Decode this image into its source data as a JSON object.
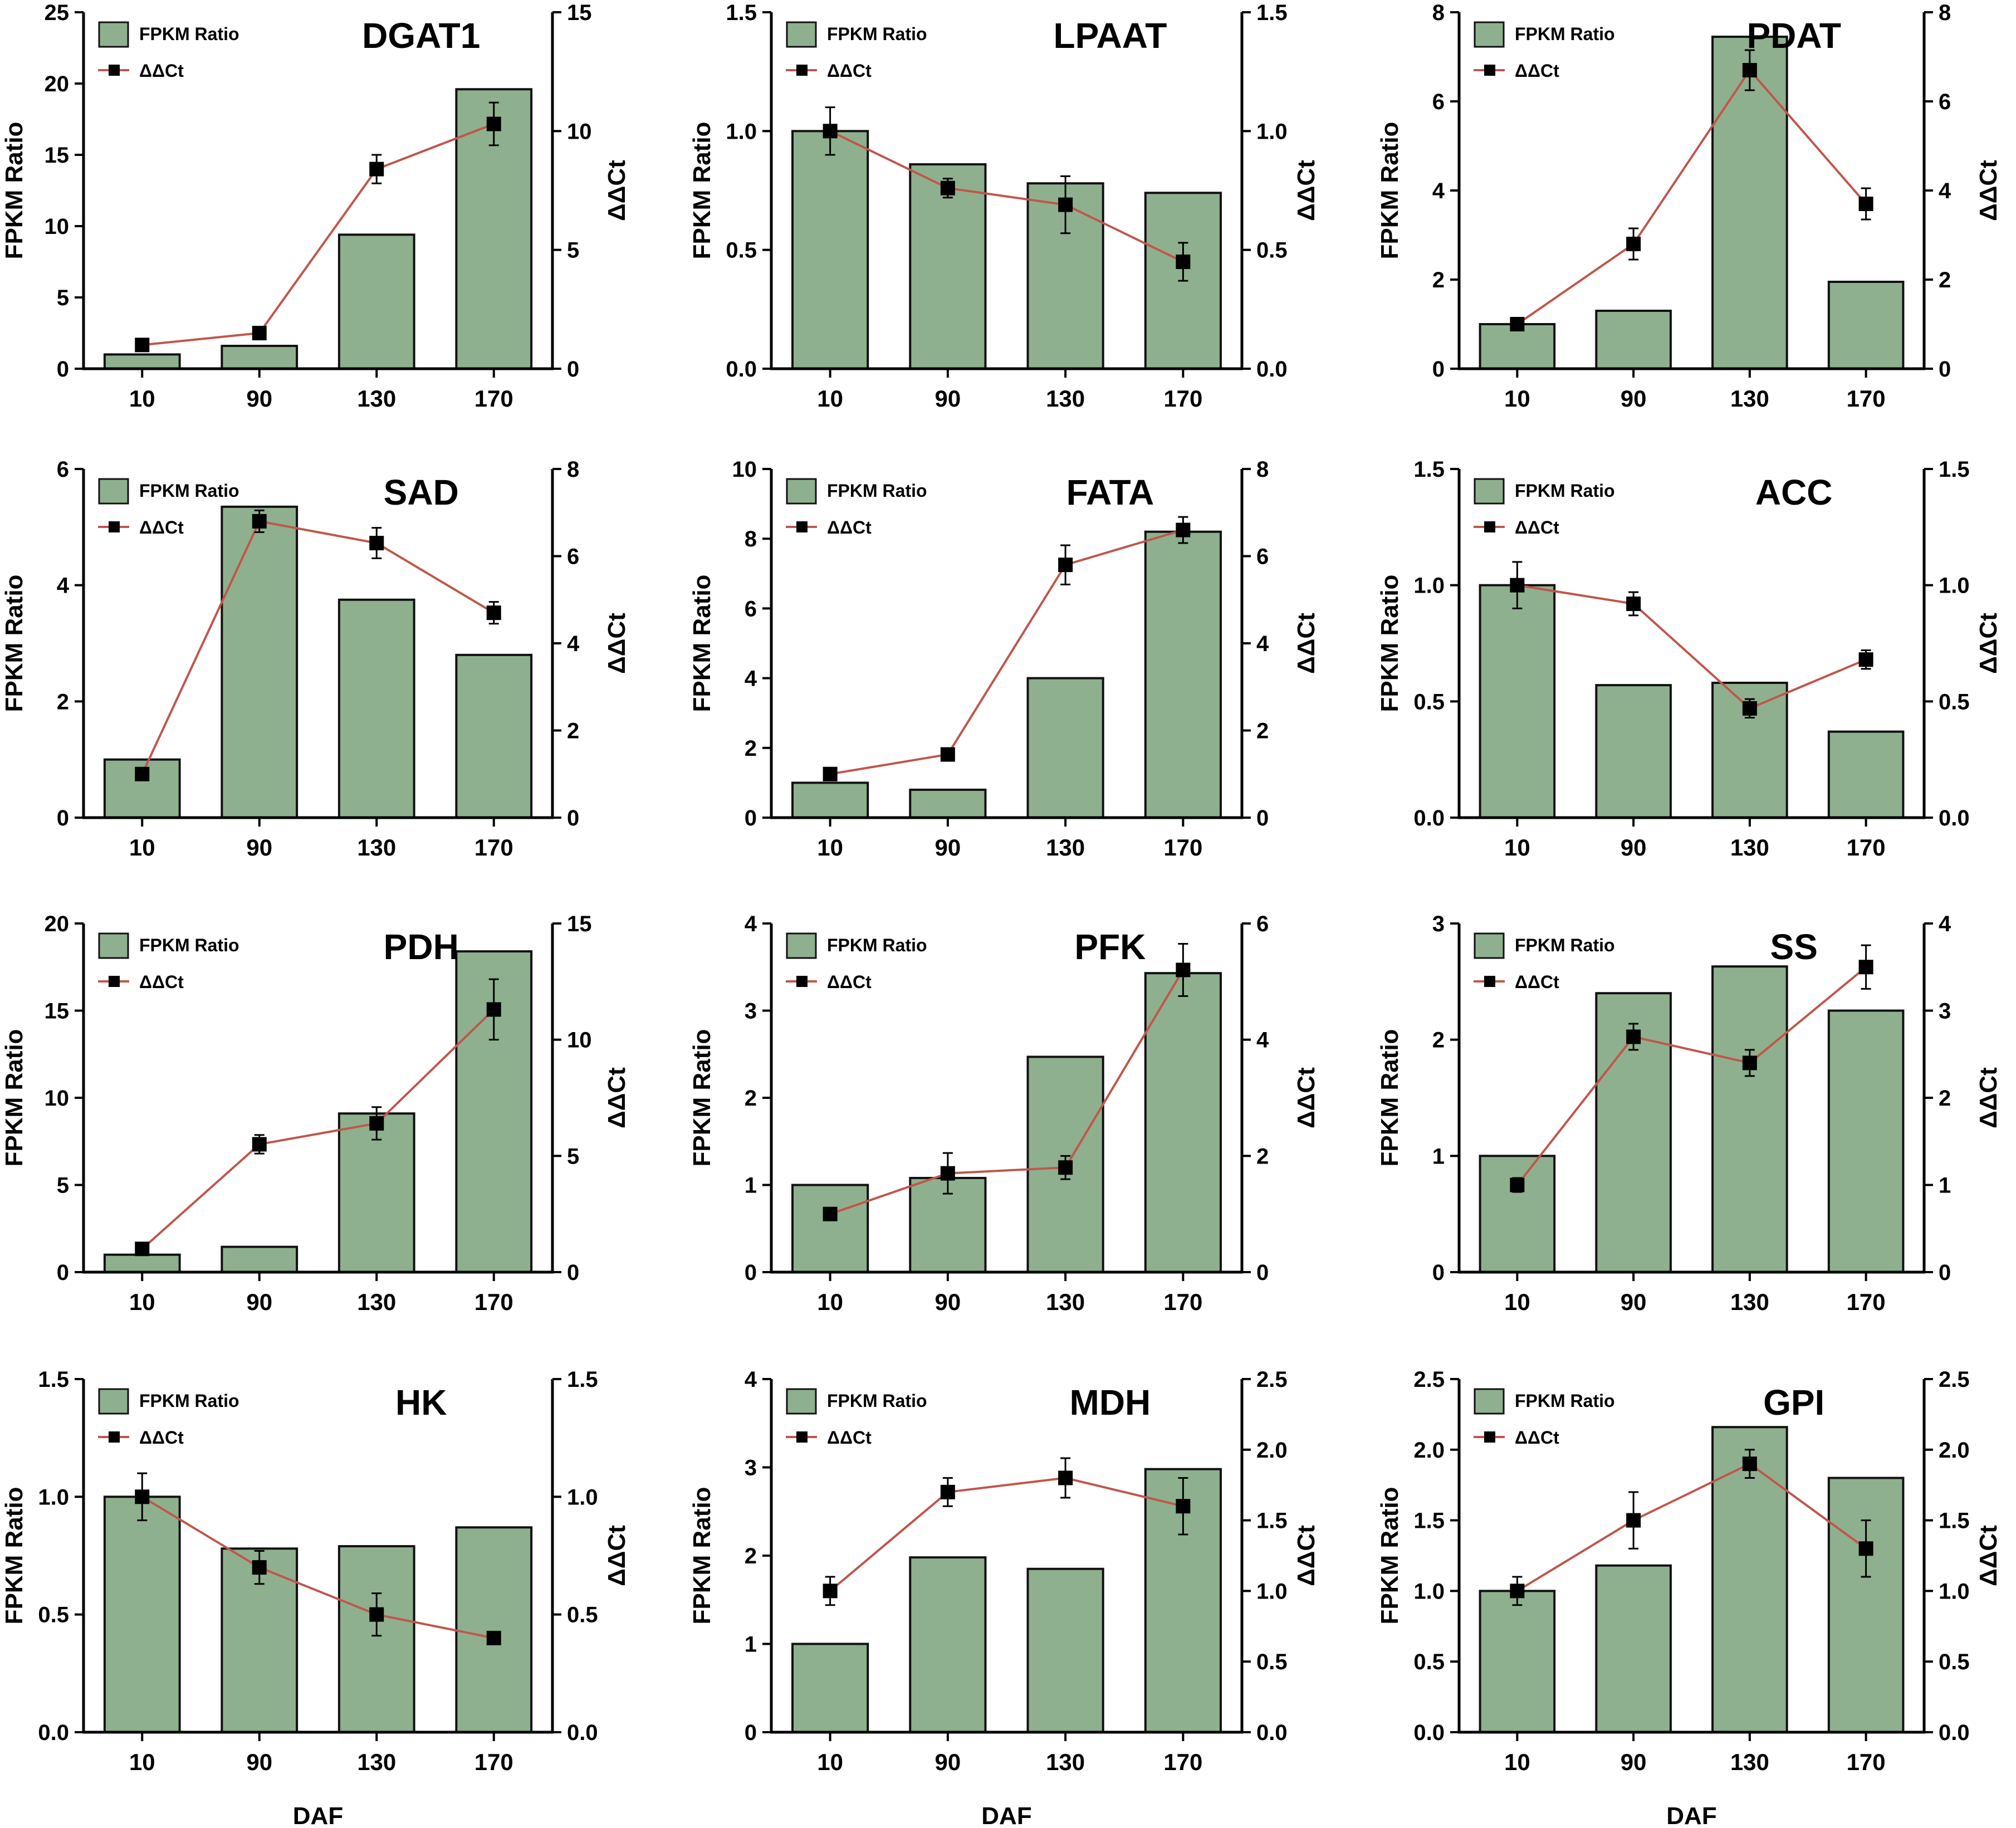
{
  "colors": {
    "bar_fill": "#8fb08f",
    "bar_edge": "#111111",
    "line": "#c0564b",
    "marker": "#000000",
    "axis": "#000000"
  },
  "legend": {
    "bar_label": "FPKM Ratio",
    "line_label": "ΔΔCt"
  },
  "chart_data": [
    {
      "type": "bar",
      "title": "DGAT1",
      "categories": [
        "10",
        "90",
        "130",
        "170"
      ],
      "xlabel": "",
      "ylabel": "FPKM Ratio",
      "y2label": "ΔΔCt",
      "ylim": [
        0,
        25
      ],
      "yticks": [
        "0",
        "5",
        "10",
        "15",
        "20",
        "25"
      ],
      "y2lim": [
        0,
        15
      ],
      "y2ticks": [
        "0",
        "5",
        "10",
        "15"
      ],
      "series": [
        {
          "name": "FPKM Ratio",
          "type": "bar",
          "values": [
            1.0,
            1.6,
            9.4,
            19.6
          ]
        },
        {
          "name": "ΔΔCt",
          "type": "line",
          "axis": "right",
          "values": [
            1.0,
            1.5,
            8.4,
            10.3
          ],
          "errors": [
            0.1,
            0.1,
            0.6,
            0.9
          ]
        }
      ]
    },
    {
      "type": "bar",
      "title": "LPAAT",
      "categories": [
        "10",
        "90",
        "130",
        "170"
      ],
      "xlabel": "",
      "ylabel": "FPKM Ratio",
      "y2label": "ΔΔCt",
      "ylim": [
        0,
        1.5
      ],
      "yticks": [
        "0.0",
        "0.5",
        "1.0",
        "1.5"
      ],
      "y2lim": [
        0,
        1.5
      ],
      "y2ticks": [
        "0.0",
        "0.5",
        "1.0",
        "1.5"
      ],
      "series": [
        {
          "name": "FPKM Ratio",
          "type": "bar",
          "values": [
            1.0,
            0.86,
            0.78,
            0.74
          ]
        },
        {
          "name": "ΔΔCt",
          "type": "line",
          "axis": "right",
          "values": [
            1.0,
            0.76,
            0.69,
            0.45
          ],
          "errors": [
            0.1,
            0.04,
            0.12,
            0.08
          ]
        }
      ]
    },
    {
      "type": "bar",
      "title": "PDAT",
      "categories": [
        "10",
        "90",
        "130",
        "170"
      ],
      "xlabel": "",
      "ylabel": "FPKM Ratio",
      "y2label": "ΔΔCt",
      "ylim": [
        0,
        8
      ],
      "yticks": [
        "0",
        "2",
        "4",
        "6",
        "8"
      ],
      "y2lim": [
        0,
        8
      ],
      "y2ticks": [
        "0",
        "2",
        "4",
        "6",
        "8"
      ],
      "series": [
        {
          "name": "FPKM Ratio",
          "type": "bar",
          "values": [
            1.0,
            1.3,
            7.45,
            1.95
          ]
        },
        {
          "name": "ΔΔCt",
          "type": "line",
          "axis": "right",
          "values": [
            1.0,
            2.8,
            6.7,
            3.7
          ],
          "errors": [
            0.08,
            0.35,
            0.45,
            0.35
          ]
        }
      ]
    },
    {
      "type": "bar",
      "title": "SAD",
      "categories": [
        "10",
        "90",
        "130",
        "170"
      ],
      "xlabel": "",
      "ylabel": "FPKM Ratio",
      "y2label": "ΔΔCt",
      "ylim": [
        0,
        6
      ],
      "yticks": [
        "0",
        "2",
        "4",
        "6"
      ],
      "y2lim": [
        0,
        8
      ],
      "y2ticks": [
        "0",
        "2",
        "4",
        "6",
        "8"
      ],
      "series": [
        {
          "name": "FPKM Ratio",
          "type": "bar",
          "values": [
            1.0,
            5.35,
            3.75,
            2.8
          ]
        },
        {
          "name": "ΔΔCt",
          "type": "line",
          "axis": "right",
          "values": [
            1.0,
            6.8,
            6.3,
            4.7
          ],
          "errors": [
            0.08,
            0.25,
            0.35,
            0.25
          ]
        }
      ]
    },
    {
      "type": "bar",
      "title": "FATA",
      "categories": [
        "10",
        "90",
        "130",
        "170"
      ],
      "xlabel": "",
      "ylabel": "FPKM Ratio",
      "y2label": "ΔΔCt",
      "ylim": [
        0,
        10
      ],
      "yticks": [
        "0",
        "2",
        "4",
        "6",
        "8",
        "10"
      ],
      "y2lim": [
        0,
        8
      ],
      "y2ticks": [
        "0",
        "2",
        "4",
        "6",
        "8"
      ],
      "series": [
        {
          "name": "FPKM Ratio",
          "type": "bar",
          "values": [
            1.0,
            0.8,
            4.0,
            8.2
          ]
        },
        {
          "name": "ΔΔCt",
          "type": "line",
          "axis": "right",
          "values": [
            1.0,
            1.45,
            5.8,
            6.6
          ],
          "errors": [
            0.08,
            0.1,
            0.45,
            0.3
          ]
        }
      ]
    },
    {
      "type": "bar",
      "title": "ACC",
      "categories": [
        "10",
        "90",
        "130",
        "170"
      ],
      "xlabel": "",
      "ylabel": "FPKM Ratio",
      "y2label": "ΔΔCt",
      "ylim": [
        0,
        1.5
      ],
      "yticks": [
        "0.0",
        "0.5",
        "1.0",
        "1.5"
      ],
      "y2lim": [
        0,
        1.5
      ],
      "y2ticks": [
        "0.0",
        "0.5",
        "1.0",
        "1.5"
      ],
      "series": [
        {
          "name": "FPKM Ratio",
          "type": "bar",
          "values": [
            1.0,
            0.57,
            0.58,
            0.37
          ]
        },
        {
          "name": "ΔΔCt",
          "type": "line",
          "axis": "right",
          "values": [
            1.0,
            0.92,
            0.47,
            0.68
          ],
          "errors": [
            0.1,
            0.05,
            0.04,
            0.04
          ]
        }
      ]
    },
    {
      "type": "bar",
      "title": "PDH",
      "categories": [
        "10",
        "90",
        "130",
        "170"
      ],
      "xlabel": "",
      "ylabel": "FPKM Ratio",
      "y2label": "ΔΔCt",
      "ylim": [
        0,
        20
      ],
      "yticks": [
        "0",
        "5",
        "10",
        "15",
        "20"
      ],
      "y2lim": [
        0,
        15
      ],
      "y2ticks": [
        "0",
        "5",
        "10",
        "15"
      ],
      "series": [
        {
          "name": "FPKM Ratio",
          "type": "bar",
          "values": [
            1.0,
            1.45,
            9.1,
            18.4
          ]
        },
        {
          "name": "ΔΔCt",
          "type": "line",
          "axis": "right",
          "values": [
            1.0,
            5.5,
            6.4,
            11.3
          ],
          "errors": [
            0.1,
            0.4,
            0.7,
            1.3
          ]
        }
      ]
    },
    {
      "type": "bar",
      "title": "PFK",
      "categories": [
        "10",
        "90",
        "130",
        "170"
      ],
      "xlabel": "",
      "ylabel": "FPKM Ratio",
      "y2label": "ΔΔCt",
      "ylim": [
        0,
        4
      ],
      "yticks": [
        "0",
        "1",
        "2",
        "3",
        "4"
      ],
      "y2lim": [
        0,
        6
      ],
      "y2ticks": [
        "0",
        "2",
        "4",
        "6"
      ],
      "series": [
        {
          "name": "FPKM Ratio",
          "type": "bar",
          "values": [
            1.0,
            1.08,
            2.47,
            3.43
          ]
        },
        {
          "name": "ΔΔCt",
          "type": "line",
          "axis": "right",
          "values": [
            1.0,
            1.7,
            1.8,
            5.2
          ],
          "errors": [
            0.08,
            0.35,
            0.2,
            0.45
          ]
        }
      ]
    },
    {
      "type": "bar",
      "title": "SS",
      "categories": [
        "10",
        "90",
        "130",
        "170"
      ],
      "xlabel": "",
      "ylabel": "FPKM Ratio",
      "y2label": "ΔΔCt",
      "ylim": [
        0,
        3
      ],
      "yticks": [
        "0",
        "1",
        "2",
        "3"
      ],
      "y2lim": [
        0,
        4
      ],
      "y2ticks": [
        "0",
        "1",
        "2",
        "3",
        "4"
      ],
      "series": [
        {
          "name": "FPKM Ratio",
          "type": "bar",
          "values": [
            1.0,
            2.4,
            2.63,
            2.25
          ]
        },
        {
          "name": "ΔΔCt",
          "type": "line",
          "axis": "right",
          "values": [
            1.0,
            2.7,
            2.4,
            3.5
          ],
          "errors": [
            0.08,
            0.15,
            0.15,
            0.25
          ]
        }
      ]
    },
    {
      "type": "bar",
      "title": "HK",
      "categories": [
        "10",
        "90",
        "130",
        "170"
      ],
      "xlabel": "DAF",
      "ylabel": "FPKM Ratio",
      "y2label": "ΔΔCt",
      "ylim": [
        0,
        1.5
      ],
      "yticks": [
        "0.0",
        "0.5",
        "1.0",
        "1.5"
      ],
      "y2lim": [
        0,
        1.5
      ],
      "y2ticks": [
        "0.0",
        "0.5",
        "1.0",
        "1.5"
      ],
      "series": [
        {
          "name": "FPKM Ratio",
          "type": "bar",
          "values": [
            1.0,
            0.78,
            0.79,
            0.87
          ]
        },
        {
          "name": "ΔΔCt",
          "type": "line",
          "axis": "right",
          "values": [
            1.0,
            0.7,
            0.5,
            0.4
          ],
          "errors": [
            0.1,
            0.07,
            0.09,
            0.02
          ]
        }
      ]
    },
    {
      "type": "bar",
      "title": "MDH",
      "categories": [
        "10",
        "90",
        "130",
        "170"
      ],
      "xlabel": "DAF",
      "ylabel": "FPKM Ratio",
      "y2label": "ΔΔCt",
      "ylim": [
        0,
        4
      ],
      "yticks": [
        "0",
        "1",
        "2",
        "3",
        "4"
      ],
      "y2lim": [
        0,
        2.5
      ],
      "y2ticks": [
        "0.0",
        "0.5",
        "1.0",
        "1.5",
        "2.0",
        "2.5"
      ],
      "series": [
        {
          "name": "FPKM Ratio",
          "type": "bar",
          "values": [
            1.0,
            1.98,
            1.85,
            2.98
          ]
        },
        {
          "name": "ΔΔCt",
          "type": "line",
          "axis": "right",
          "values": [
            1.0,
            1.7,
            1.8,
            1.6
          ],
          "errors": [
            0.1,
            0.1,
            0.14,
            0.2
          ]
        }
      ]
    },
    {
      "type": "bar",
      "title": "GPI",
      "categories": [
        "10",
        "90",
        "130",
        "170"
      ],
      "xlabel": "DAF",
      "ylabel": "FPKM Ratio",
      "y2label": "ΔΔCt",
      "ylim": [
        0,
        2.5
      ],
      "yticks": [
        "0.0",
        "0.5",
        "1.0",
        "1.5",
        "2.0",
        "2.5"
      ],
      "y2lim": [
        0,
        2.5
      ],
      "y2ticks": [
        "0.0",
        "0.5",
        "1.0",
        "1.5",
        "2.0",
        "2.5"
      ],
      "series": [
        {
          "name": "FPKM Ratio",
          "type": "bar",
          "values": [
            1.0,
            1.18,
            2.16,
            1.8
          ]
        },
        {
          "name": "ΔΔCt",
          "type": "line",
          "axis": "right",
          "values": [
            1.0,
            1.5,
            1.9,
            1.3
          ],
          "errors": [
            0.1,
            0.2,
            0.1,
            0.2
          ]
        }
      ]
    }
  ]
}
